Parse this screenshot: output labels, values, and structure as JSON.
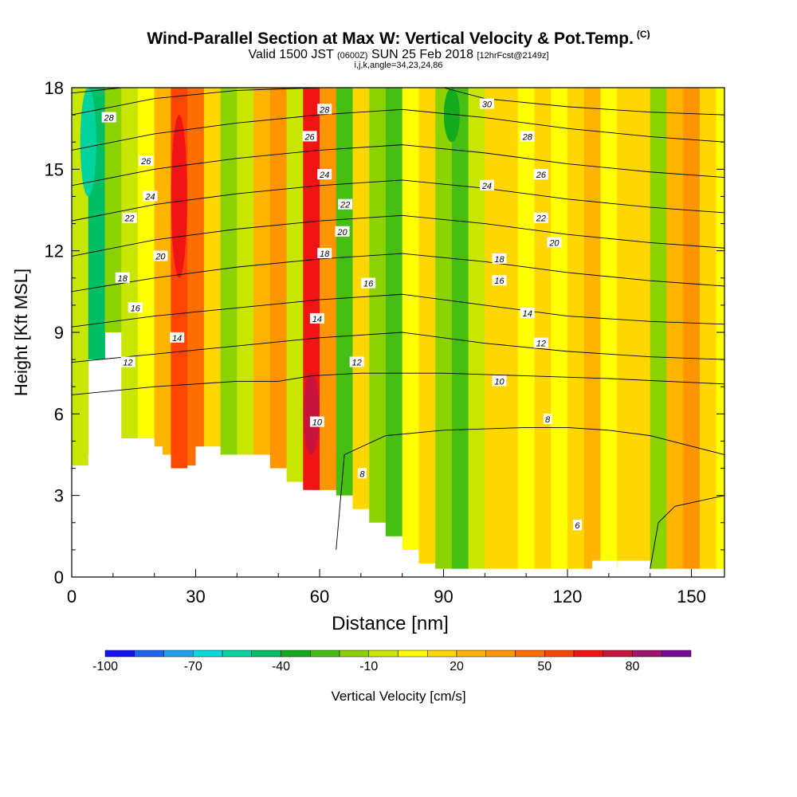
{
  "title": {
    "main": "Wind-Parallel Section at Max W: Vertical Velocity & Pot.Temp.",
    "main_suffix": "(C)",
    "valid_a": "Valid 1500 JST",
    "valid_zulu": "(0600Z)",
    "valid_b": "SUN 25 Feb 2018",
    "forecast": "[12hrFcst@2149z]",
    "params": "i,j,k,angle=34,23,24,86"
  },
  "chart_data": {
    "type": "heatmap",
    "xlabel": "Distance [nm]",
    "ylabel": "Height [Kft MSL]",
    "xlim": [
      0,
      158
    ],
    "ylim": [
      0,
      18
    ],
    "x_ticks": [
      0,
      30,
      60,
      90,
      120,
      150
    ],
    "y_ticks": [
      0,
      3,
      6,
      9,
      12,
      15,
      18
    ],
    "colorbar": {
      "title": "Vertical Velocity [cm/s]",
      "labels": [
        "-100",
        "-70",
        "-40",
        "-10",
        "20",
        "50",
        "80"
      ],
      "label_values": [
        -100,
        -70,
        -40,
        -10,
        20,
        50,
        80
      ],
      "range": [
        -100,
        100
      ],
      "step": 10,
      "colors": [
        "#1414f0",
        "#1e64f0",
        "#1ea0f0",
        "#00dcdc",
        "#00d2a0",
        "#00be64",
        "#14aa1e",
        "#46be14",
        "#8cd200",
        "#c8e600",
        "#ffff00",
        "#ffd700",
        "#ffb400",
        "#ff9600",
        "#ff6e00",
        "#ff4600",
        "#f01414",
        "#c8143c",
        "#a0146e",
        "#780a96"
      ]
    },
    "velocity_cells": [
      {
        "x": 0,
        "y0": 3.2,
        "y1": 18,
        "value": -10
      },
      {
        "x": 4,
        "y0": 8,
        "y1": 18,
        "value": -50
      },
      {
        "x": 8,
        "y0": 9,
        "y1": 18,
        "value": -20
      },
      {
        "x": 12,
        "y0": 4.5,
        "y1": 18,
        "value": -10
      },
      {
        "x": 16,
        "y0": 4.5,
        "y1": 18,
        "value": 0
      },
      {
        "x": 20,
        "y0": 4.5,
        "y1": 18,
        "value": 20
      },
      {
        "x": 24,
        "y0": 4,
        "y1": 18,
        "value": 50
      },
      {
        "x": 28,
        "y0": 4,
        "y1": 18,
        "value": 40
      },
      {
        "x": 32,
        "y0": 3.5,
        "y1": 18,
        "value": 10
      },
      {
        "x": 36,
        "y0": 4.5,
        "y1": 18,
        "value": -20
      },
      {
        "x": 40,
        "y0": 4.5,
        "y1": 18,
        "value": -10
      },
      {
        "x": 44,
        "y0": 4.5,
        "y1": 18,
        "value": 20
      },
      {
        "x": 48,
        "y0": 4,
        "y1": 18,
        "value": 30
      },
      {
        "x": 52,
        "y0": 3.5,
        "y1": 18,
        "value": -10
      },
      {
        "x": 56,
        "y0": 3.2,
        "y1": 18,
        "value": 60
      },
      {
        "x": 60,
        "y0": 3.2,
        "y1": 18,
        "value": 30
      },
      {
        "x": 64,
        "y0": 3,
        "y1": 18,
        "value": -30
      },
      {
        "x": 68,
        "y0": 2.5,
        "y1": 18,
        "value": 10
      },
      {
        "x": 72,
        "y0": 2,
        "y1": 18,
        "value": -20
      },
      {
        "x": 76,
        "y0": 1.5,
        "y1": 18,
        "value": -30
      },
      {
        "x": 80,
        "y0": 1,
        "y1": 18,
        "value": 0
      },
      {
        "x": 84,
        "y0": 0.5,
        "y1": 18,
        "value": 10
      },
      {
        "x": 88,
        "y0": 0.3,
        "y1": 18,
        "value": -20
      },
      {
        "x": 92,
        "y0": 0.3,
        "y1": 18,
        "value": -30
      },
      {
        "x": 96,
        "y0": 0.3,
        "y1": 18,
        "value": -10
      },
      {
        "x": 100,
        "y0": 0.3,
        "y1": 18,
        "value": 10
      },
      {
        "x": 104,
        "y0": 0.3,
        "y1": 18,
        "value": 10
      },
      {
        "x": 108,
        "y0": 0.3,
        "y1": 18,
        "value": 0
      },
      {
        "x": 112,
        "y0": 0.3,
        "y1": 18,
        "value": 10
      },
      {
        "x": 116,
        "y0": 0.3,
        "y1": 18,
        "value": 0
      },
      {
        "x": 120,
        "y0": 0.3,
        "y1": 18,
        "value": 10
      },
      {
        "x": 124,
        "y0": 0.3,
        "y1": 18,
        "value": 20
      },
      {
        "x": 128,
        "y0": 0.3,
        "y1": 18,
        "value": 0
      },
      {
        "x": 132,
        "y0": 0.6,
        "y1": 18,
        "value": 10
      },
      {
        "x": 136,
        "y0": 0.6,
        "y1": 18,
        "value": 10
      },
      {
        "x": 140,
        "y0": 0.3,
        "y1": 18,
        "value": -20
      },
      {
        "x": 144,
        "y0": 0.3,
        "y1": 18,
        "value": 20
      },
      {
        "x": 148,
        "y0": 0.3,
        "y1": 18,
        "value": 30
      },
      {
        "x": 152,
        "y0": 0.3,
        "y1": 18,
        "value": 10
      },
      {
        "x": 156,
        "y0": 0.3,
        "y1": 18,
        "value": 0
      }
    ],
    "velocity_features": [
      {
        "x": 58,
        "y0": 4.5,
        "y1": 7.5,
        "value": 70
      },
      {
        "x": 26,
        "y0": 11,
        "y1": 17,
        "value": 60
      },
      {
        "x": 92,
        "y0": 16,
        "y1": 18,
        "value": -40
      },
      {
        "x": 4,
        "y0": 14,
        "y1": 18,
        "value": -60
      }
    ],
    "terrain": [
      [
        0,
        4.1
      ],
      [
        4,
        4.1
      ],
      [
        4,
        4.5
      ],
      [
        8,
        4.5
      ],
      [
        8,
        4.8
      ],
      [
        12,
        4.8
      ],
      [
        12,
        5.1
      ],
      [
        20,
        5.1
      ],
      [
        20,
        4.8
      ],
      [
        22,
        4.8
      ],
      [
        22,
        4.4
      ],
      [
        24,
        4.4
      ],
      [
        24,
        3.5
      ],
      [
        26,
        3.5
      ],
      [
        26,
        3.2
      ],
      [
        28,
        3.2
      ],
      [
        28,
        4.1
      ],
      [
        30,
        4.1
      ],
      [
        30,
        4.8
      ],
      [
        36,
        4.8
      ],
      [
        36,
        4.4
      ],
      [
        40,
        4.4
      ],
      [
        40,
        4.1
      ],
      [
        42,
        4.1
      ],
      [
        42,
        3.8
      ],
      [
        44,
        3.8
      ],
      [
        44,
        3.5
      ],
      [
        46,
        3.5
      ],
      [
        46,
        3.2
      ],
      [
        58,
        3.2
      ],
      [
        58,
        2.9
      ],
      [
        60,
        2.9
      ],
      [
        60,
        2.6
      ],
      [
        62,
        2.6
      ],
      [
        62,
        2.3
      ],
      [
        64,
        2.3
      ],
      [
        64,
        2.0
      ],
      [
        66,
        2.0
      ],
      [
        66,
        1.7
      ],
      [
        68,
        1.7
      ],
      [
        68,
        1.4
      ],
      [
        70,
        1.4
      ],
      [
        70,
        1.1
      ],
      [
        72,
        1.1
      ],
      [
        72,
        0.8
      ],
      [
        74,
        0.8
      ],
      [
        74,
        0.5
      ],
      [
        76,
        0.5
      ],
      [
        76,
        0.3
      ],
      [
        126,
        0.3
      ],
      [
        126,
        0.6
      ],
      [
        132,
        0.6
      ],
      [
        132,
        0.3
      ],
      [
        158,
        0.3
      ]
    ],
    "theta_contours": [
      {
        "label": "6",
        "points": [
          [
            140,
            0.3
          ],
          [
            142,
            2
          ],
          [
            146,
            2.6
          ],
          [
            158,
            3
          ]
        ]
      },
      {
        "label": "8",
        "points": [
          [
            64,
            1
          ],
          [
            66,
            4.5
          ],
          [
            76,
            5.2
          ],
          [
            90,
            5.4
          ],
          [
            110,
            5.5
          ],
          [
            120,
            5.5
          ],
          [
            130,
            5.4
          ],
          [
            140,
            5.2
          ],
          [
            158,
            4.5
          ]
        ]
      },
      {
        "label": "10",
        "points": [
          [
            0,
            6.7
          ],
          [
            20,
            7
          ],
          [
            40,
            7.2
          ],
          [
            50,
            7.2
          ],
          [
            58,
            7.4
          ],
          [
            70,
            7.5
          ],
          [
            90,
            7.5
          ],
          [
            110,
            7.4
          ],
          [
            130,
            7.3
          ],
          [
            158,
            7.1
          ]
        ]
      },
      {
        "label": "12",
        "points": [
          [
            0,
            7.9
          ],
          [
            20,
            8.2
          ],
          [
            40,
            8.5
          ],
          [
            60,
            8.8
          ],
          [
            80,
            9
          ],
          [
            100,
            8.6
          ],
          [
            120,
            8.3
          ],
          [
            140,
            8.1
          ],
          [
            158,
            8
          ]
        ]
      },
      {
        "label": "14",
        "points": [
          [
            0,
            9.2
          ],
          [
            20,
            9.6
          ],
          [
            40,
            9.9
          ],
          [
            60,
            10.2
          ],
          [
            80,
            10.4
          ],
          [
            100,
            10
          ],
          [
            120,
            9.6
          ],
          [
            140,
            9.4
          ],
          [
            158,
            9.3
          ]
        ]
      },
      {
        "label": "16",
        "points": [
          [
            0,
            10.5
          ],
          [
            20,
            11
          ],
          [
            40,
            11.4
          ],
          [
            60,
            11.7
          ],
          [
            80,
            11.9
          ],
          [
            100,
            11.6
          ],
          [
            120,
            11.2
          ],
          [
            140,
            10.9
          ],
          [
            158,
            10.7
          ]
        ]
      },
      {
        "label": "18",
        "points": [
          [
            0,
            11.8
          ],
          [
            20,
            12.4
          ],
          [
            40,
            12.8
          ],
          [
            60,
            13.1
          ],
          [
            80,
            13.3
          ],
          [
            100,
            13
          ],
          [
            120,
            12.6
          ],
          [
            140,
            12.3
          ],
          [
            158,
            12.1
          ]
        ]
      },
      {
        "label": "20",
        "points": [
          [
            0,
            13.1
          ],
          [
            20,
            13.7
          ],
          [
            40,
            14.1
          ],
          [
            60,
            14.4
          ],
          [
            80,
            14.6
          ],
          [
            100,
            14.3
          ],
          [
            120,
            13.9
          ],
          [
            140,
            13.6
          ],
          [
            158,
            13.4
          ]
        ]
      },
      {
        "label": "22",
        "points": [
          [
            0,
            14.4
          ],
          [
            20,
            15
          ],
          [
            40,
            15.4
          ],
          [
            60,
            15.7
          ],
          [
            80,
            15.9
          ],
          [
            100,
            15.6
          ],
          [
            120,
            15.2
          ],
          [
            140,
            14.9
          ],
          [
            158,
            14.7
          ]
        ]
      },
      {
        "label": "24",
        "points": [
          [
            0,
            15.7
          ],
          [
            20,
            16.3
          ],
          [
            40,
            16.7
          ],
          [
            60,
            17
          ],
          [
            80,
            17.2
          ],
          [
            100,
            16.9
          ],
          [
            120,
            16.5
          ],
          [
            140,
            16.2
          ],
          [
            158,
            16
          ]
        ]
      },
      {
        "label": "26",
        "points": [
          [
            0,
            17
          ],
          [
            20,
            17.6
          ],
          [
            40,
            17.9
          ],
          [
            60,
            18
          ]
        ]
      },
      {
        "label": "28",
        "points": [
          [
            0,
            17.8
          ],
          [
            12,
            18
          ]
        ]
      },
      {
        "label": "30",
        "points": [
          [
            90,
            18
          ],
          [
            100,
            17.6
          ],
          [
            120,
            17.3
          ],
          [
            140,
            17.1
          ],
          [
            158,
            17
          ]
        ]
      }
    ],
    "contour_labels": [
      {
        "text": "28",
        "x": 9,
        "y": 16.9
      },
      {
        "text": "26",
        "x": 18,
        "y": 15.3
      },
      {
        "text": "24",
        "x": 19,
        "y": 14
      },
      {
        "text": "22",
        "x": 14,
        "y": 13.2
      },
      {
        "text": "20",
        "x": 21.5,
        "y": 11.8
      },
      {
        "text": "18",
        "x": 12.3,
        "y": 11
      },
      {
        "text": "16",
        "x": 15.4,
        "y": 9.9
      },
      {
        "text": "14",
        "x": 25.5,
        "y": 8.8
      },
      {
        "text": "12",
        "x": 13.6,
        "y": 7.9
      },
      {
        "text": "28",
        "x": 61.2,
        "y": 17.2
      },
      {
        "text": "26",
        "x": 57.6,
        "y": 16.2
      },
      {
        "text": "24",
        "x": 61.2,
        "y": 14.8
      },
      {
        "text": "22",
        "x": 66.2,
        "y": 13.7
      },
      {
        "text": "20",
        "x": 65.5,
        "y": 12.7
      },
      {
        "text": "18",
        "x": 61.2,
        "y": 11.9
      },
      {
        "text": "16",
        "x": 71.8,
        "y": 10.8
      },
      {
        "text": "14",
        "x": 59.4,
        "y": 9.5
      },
      {
        "text": "12",
        "x": 69,
        "y": 7.9
      },
      {
        "text": "10",
        "x": 59.4,
        "y": 5.7
      },
      {
        "text": "8",
        "x": 70.3,
        "y": 3.8
      },
      {
        "text": "30",
        "x": 100.5,
        "y": 17.4
      },
      {
        "text": "28",
        "x": 110.3,
        "y": 16.2
      },
      {
        "text": "26",
        "x": 113.6,
        "y": 14.8
      },
      {
        "text": "24",
        "x": 100.5,
        "y": 14.4
      },
      {
        "text": "22",
        "x": 113.6,
        "y": 13.2
      },
      {
        "text": "20",
        "x": 116.8,
        "y": 12.3
      },
      {
        "text": "18",
        "x": 103.5,
        "y": 11.7
      },
      {
        "text": "16",
        "x": 103.5,
        "y": 10.9
      },
      {
        "text": "14",
        "x": 110.3,
        "y": 9.7
      },
      {
        "text": "12",
        "x": 113.6,
        "y": 8.6
      },
      {
        "text": "10",
        "x": 103.5,
        "y": 7.2
      },
      {
        "text": "8",
        "x": 115.2,
        "y": 5.8
      },
      {
        "text": "6",
        "x": 122.4,
        "y": 1.9
      }
    ]
  }
}
